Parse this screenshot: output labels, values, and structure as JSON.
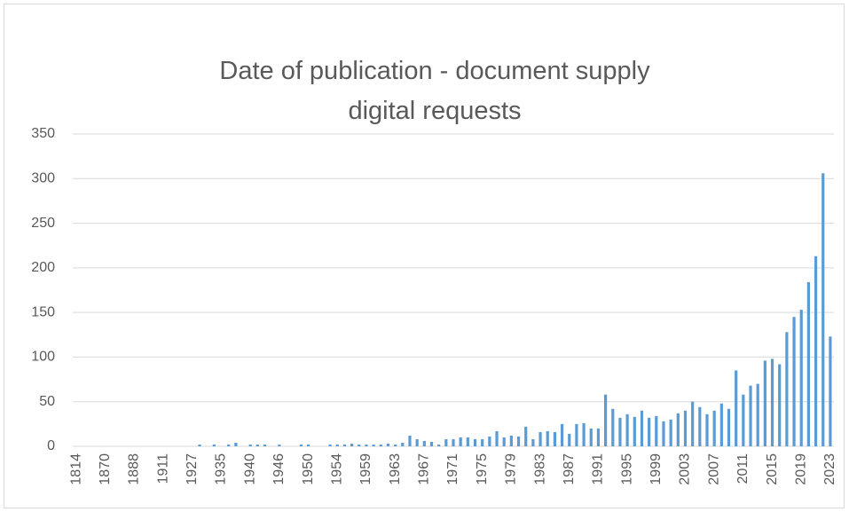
{
  "chart_data": {
    "type": "bar",
    "title": "Date of publication - document supply digital requests",
    "categories": [
      "1814",
      null,
      null,
      null,
      "1870",
      null,
      null,
      null,
      "1888",
      null,
      null,
      null,
      "1911",
      null,
      null,
      null,
      "1927",
      null,
      null,
      null,
      "1935",
      null,
      null,
      null,
      "1940",
      null,
      null,
      null,
      "1946",
      null,
      null,
      null,
      "1950",
      null,
      null,
      null,
      "1954",
      null,
      null,
      null,
      "1959",
      null,
      null,
      null,
      "1963",
      null,
      null,
      null,
      "1967",
      null,
      null,
      null,
      "1971",
      null,
      null,
      null,
      "1975",
      null,
      null,
      null,
      "1979",
      null,
      null,
      null,
      "1983",
      null,
      null,
      null,
      "1987",
      null,
      null,
      null,
      "1991",
      null,
      null,
      null,
      "1995",
      null,
      null,
      null,
      "1999",
      null,
      null,
      null,
      "2003",
      null,
      null,
      null,
      "2007",
      null,
      null,
      null,
      "2011",
      null,
      null,
      null,
      "2015",
      null,
      null,
      null,
      "2019",
      null,
      null,
      null,
      "2023"
    ],
    "values": [
      0,
      0,
      0,
      0,
      0,
      0,
      0,
      0,
      0,
      0,
      0,
      0,
      0,
      0,
      0,
      0,
      0,
      2,
      0,
      2,
      0,
      2,
      4,
      0,
      2,
      2,
      2,
      0,
      2,
      0,
      0,
      2,
      2,
      0,
      0,
      2,
      2,
      2,
      3,
      2,
      2,
      2,
      2,
      3,
      2,
      4,
      12,
      8,
      6,
      5,
      2,
      8,
      8,
      10,
      10,
      8,
      8,
      11,
      17,
      10,
      12,
      11,
      22,
      8,
      16,
      17,
      16,
      25,
      14,
      25,
      26,
      20,
      20,
      58,
      42,
      32,
      36,
      33,
      40,
      32,
      34,
      28,
      30,
      37,
      40,
      50,
      44,
      36,
      40,
      48,
      42,
      85,
      58,
      68,
      70,
      96,
      98,
      92,
      128,
      145,
      153,
      184,
      213,
      306,
      123
    ],
    "color": "#5b9bd5",
    "ylim": [
      0,
      350
    ],
    "yticks": [
      0,
      50,
      100,
      150,
      200,
      250,
      300,
      350
    ],
    "grid": true
  }
}
